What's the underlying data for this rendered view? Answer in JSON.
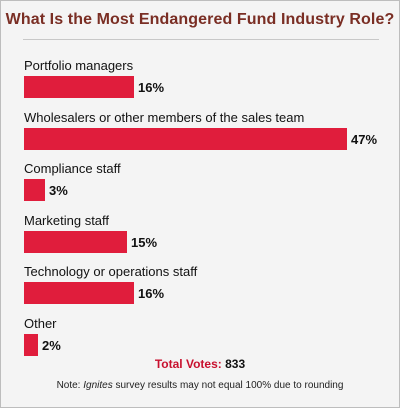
{
  "chart_data": {
    "type": "bar",
    "orientation": "horizontal",
    "title": "What Is the Most Endangered Fund Industry Role?",
    "categories": [
      "Portfolio managers",
      "Wholesalers or other members of the sales team",
      "Compliance staff",
      "Marketing staff",
      "Technology or operations staff",
      "Other"
    ],
    "values": [
      16,
      47,
      3,
      15,
      16,
      2
    ],
    "value_labels": [
      "16%",
      "47%",
      "3%",
      "15%",
      "16%",
      "2%"
    ],
    "unit": "%",
    "xlim": [
      0,
      47
    ],
    "grid": false,
    "bar_color": "#e01d3c"
  },
  "total": {
    "label": "Total Votes:",
    "value": "833"
  },
  "note": {
    "prefix": "Note: ",
    "brand": "Ignites",
    "suffix": " survey results may not equal 100% due to rounding"
  },
  "colors": {
    "title": "#7a2e24",
    "bar": "#e01d3c",
    "total_label": "#c8102e",
    "background": "#f4f4f4"
  }
}
